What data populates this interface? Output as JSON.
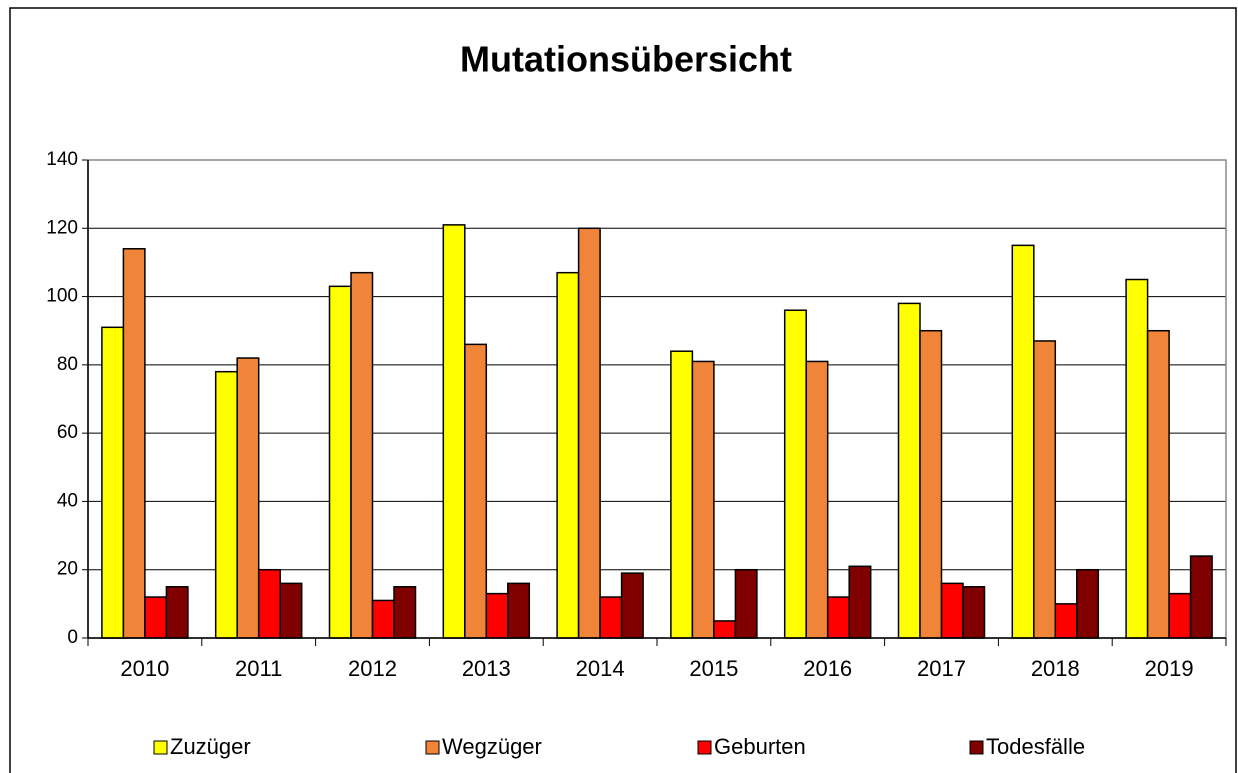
{
  "chart_data": {
    "type": "bar",
    "title": "Mutationsübersicht",
    "categories": [
      "2010",
      "2011",
      "2012",
      "2013",
      "2014",
      "2015",
      "2016",
      "2017",
      "2018",
      "2019"
    ],
    "series": [
      {
        "name": "Zuzüger",
        "color": "#ffff00",
        "values": [
          91,
          78,
          103,
          121,
          107,
          84,
          96,
          98,
          115,
          105
        ]
      },
      {
        "name": "Wegzüger",
        "color": "#f0853a",
        "values": [
          114,
          82,
          107,
          86,
          120,
          81,
          81,
          90,
          87,
          90
        ]
      },
      {
        "name": "Geburten",
        "color": "#ff0000",
        "values": [
          12,
          20,
          11,
          13,
          12,
          5,
          12,
          16,
          10,
          13
        ]
      },
      {
        "name": "Todesfälle",
        "color": "#800000",
        "values": [
          15,
          16,
          15,
          16,
          19,
          20,
          21,
          15,
          20,
          24
        ]
      }
    ],
    "ylim": [
      0,
      140
    ],
    "yticks": [
      0,
      20,
      40,
      60,
      80,
      100,
      120,
      140
    ],
    "grid": true,
    "legend": "bottom"
  }
}
